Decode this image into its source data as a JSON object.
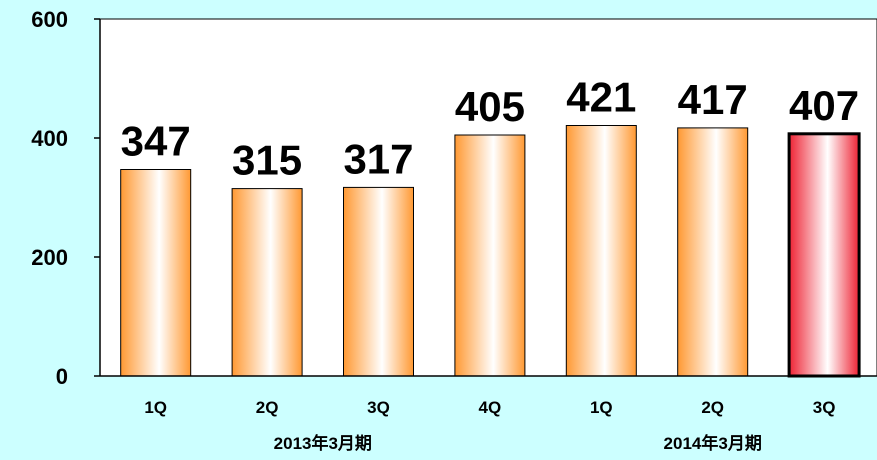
{
  "chart_data": {
    "type": "bar",
    "categories": [
      "1Q",
      "2Q",
      "3Q",
      "4Q",
      "1Q",
      "2Q",
      "3Q"
    ],
    "groups": [
      {
        "label": "2013年3月期",
        "start": 0,
        "end": 3
      },
      {
        "label": "2014年3月期",
        "start": 4,
        "end": 6
      }
    ],
    "values": [
      347,
      315,
      317,
      405,
      421,
      417,
      407
    ],
    "data_labels": [
      "347",
      "315",
      "317",
      "405",
      "421",
      "417",
      "407"
    ],
    "yticks": [
      "0",
      "200",
      "400",
      "600"
    ],
    "ylim": [
      0,
      600
    ],
    "grid": false,
    "highlight_index": 6,
    "colors": {
      "background": "#CCFFFF",
      "plot_background": "#FFFFFF",
      "bar_edge": "#FF9933",
      "bar_center": "#FFFFFF",
      "highlight_edge": "#EE2233",
      "highlight_center": "#FFFFFF",
      "highlight_border": "#000000",
      "axis": "#000000"
    }
  }
}
